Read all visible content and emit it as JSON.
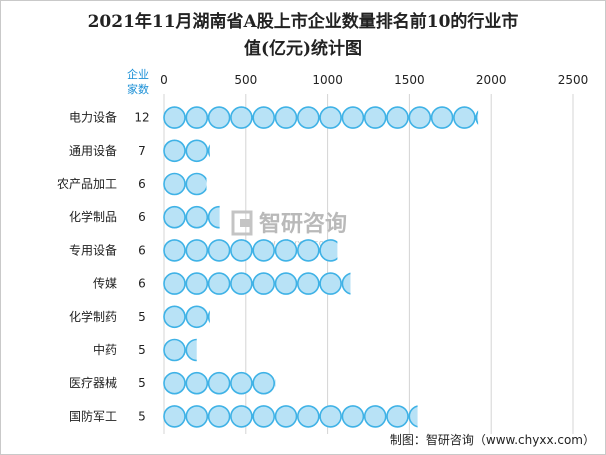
{
  "title": {
    "line1": "2021年11月湖南省A股上市企业数量排名前10的行业市",
    "line2": "值(亿元)统计图"
  },
  "header": {
    "count_line1": "企业",
    "count_line2": "家数"
  },
  "source": "制图：智研咨询（www.chyxx.com）",
  "watermark": {
    "text": "智研咨询",
    "sub": "www.chyxx.com"
  },
  "colors": {
    "bubble_fill": "#b8e2f6",
    "bubble_stroke": "#3fb2e6",
    "grid": "#d4d4d4",
    "header_text": "#1a8fd6"
  },
  "chart_data": {
    "type": "bar",
    "style": "pictorial bubbles",
    "title": "2021年11月湖南省A股上市企业数量排名前10的行业市值(亿元)统计图",
    "xlim": [
      0,
      2500
    ],
    "xticks": [
      0,
      500,
      1000,
      1500,
      2000,
      2500
    ],
    "grid": true,
    "categories": [
      "电力设备",
      "通用设备",
      "农产品加工",
      "化学制品",
      "专用设备",
      "传媒",
      "化学制药",
      "中药",
      "医疗器械",
      "国防军工"
    ],
    "counts": [
      12,
      7,
      6,
      6,
      6,
      6,
      5,
      5,
      5,
      5
    ],
    "values": [
      1920,
      280,
      260,
      340,
      1060,
      1140,
      280,
      200,
      680,
      1550
    ]
  }
}
